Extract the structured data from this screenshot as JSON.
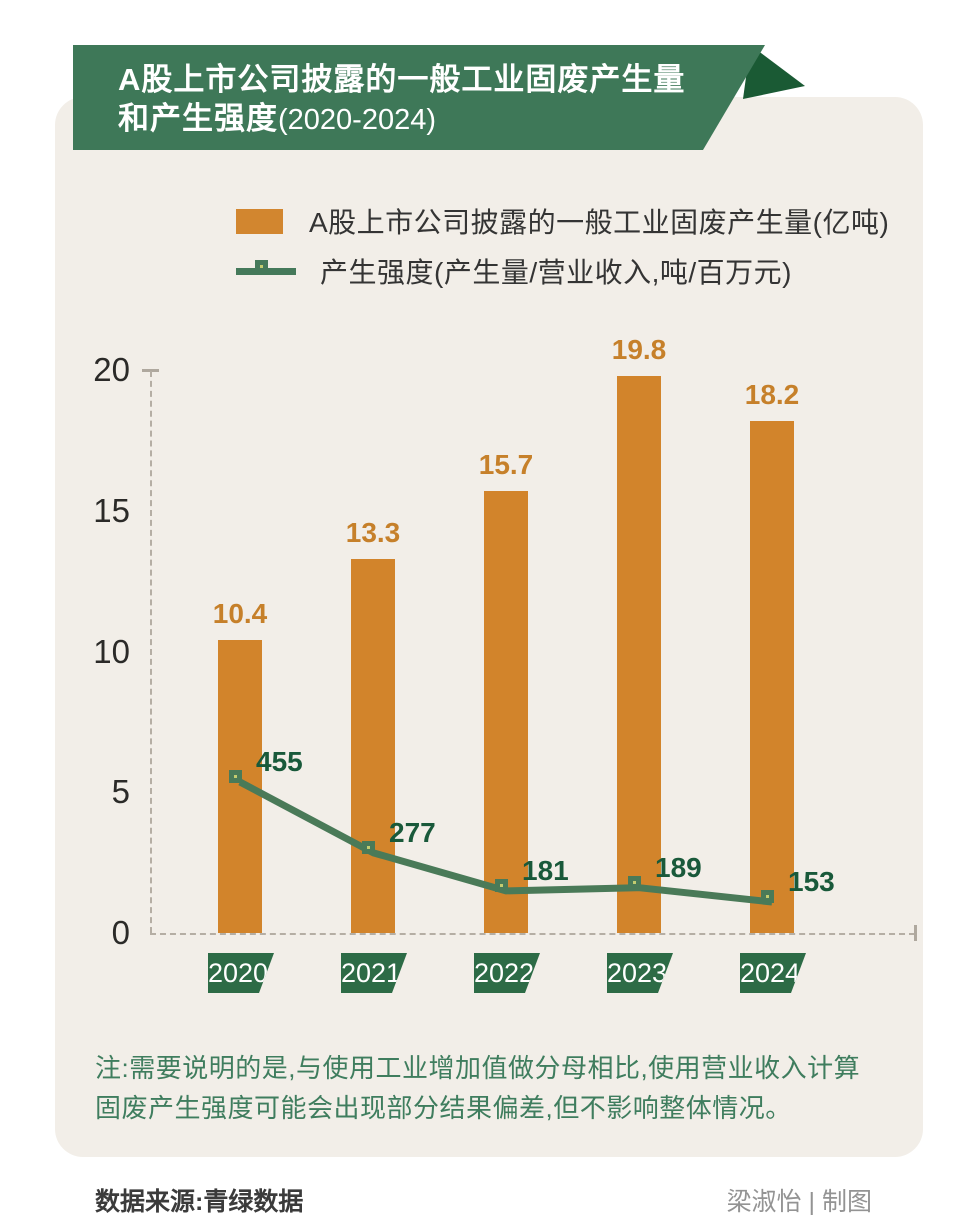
{
  "banner": {
    "title_line1": "A股上市公司披露的一般工业固废产生量",
    "title_line2_bold": "和产生强度",
    "title_line2_paren": "(2020-2024)"
  },
  "legend": {
    "bar_label": "A股上市公司披露的一般工业固废产生量(亿吨)",
    "line_label": "产生强度(产生量/营业收入,吨/百万元)"
  },
  "chart_data": {
    "type": "bar+line",
    "categories": [
      "2020",
      "2021",
      "2022",
      "2023",
      "2024"
    ],
    "series": [
      {
        "name": "A股上市公司披露的一般工业固废产生量(亿吨)",
        "type": "bar",
        "values": [
          10.4,
          13.3,
          15.7,
          19.8,
          18.2
        ],
        "color": "#D2842B",
        "label_color": "#C6802A"
      },
      {
        "name": "产生强度(产生量/营业收入,吨/百万元)",
        "type": "line",
        "values": [
          455,
          277,
          181,
          189,
          153
        ],
        "color": "#4A7A58",
        "marker_fill": "#C3CC70",
        "label_color": "#19593A"
      }
    ],
    "left_axis": {
      "ticks": [
        0,
        5,
        10,
        15,
        20
      ],
      "range": [
        0,
        20
      ]
    },
    "right_axis": {
      "visible": false
    },
    "grid": false,
    "legend_position": "top"
  },
  "note": "注:需要说明的是,与使用工业增加值做分母相比,使用营业收入计算固废产生强度可能会出现部分结果偏差,但不影响整体情况。",
  "footer": {
    "source": "数据来源:青绿数据",
    "credit": "梁淑怡 | 制图"
  },
  "colors": {
    "card_bg": "#F2EEE8",
    "banner_green": "#3E7858",
    "banner_fold_green": "#1A5A34",
    "year_flag_green": "#2D6B46",
    "bar_orange": "#D2842B",
    "line_green": "#4A7A58",
    "marker_fill": "#C3CC70",
    "note_green": "#3F7D5E"
  }
}
